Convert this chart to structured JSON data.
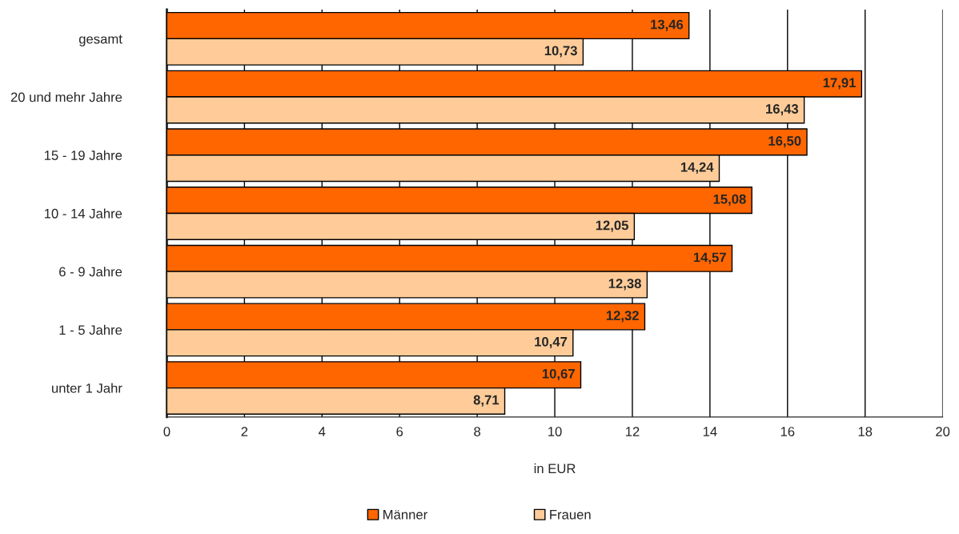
{
  "chart_data": {
    "type": "bar",
    "orientation": "horizontal",
    "xlabel": "in EUR",
    "categories": [
      "gesamt",
      "20 und mehr Jahre",
      "15 - 19 Jahre",
      "10 - 14 Jahre",
      "6 - 9 Jahre",
      "1 - 5 Jahre",
      "unter 1 Jahr"
    ],
    "series": [
      {
        "name": "Männer",
        "color": "#ff6600",
        "values": [
          13.46,
          17.91,
          16.5,
          15.08,
          14.57,
          12.32,
          10.67
        ],
        "value_labels": [
          "13,46",
          "17,91",
          "16,50",
          "15,08",
          "14,57",
          "12,32",
          "10,67"
        ]
      },
      {
        "name": "Frauen",
        "color": "#ffcc99",
        "values": [
          10.73,
          16.43,
          14.24,
          12.05,
          12.38,
          10.47,
          8.71
        ],
        "value_labels": [
          "10,73",
          "16,43",
          "14,24",
          "12,05",
          "12,38",
          "10,47",
          "8,71"
        ]
      }
    ],
    "xlim": [
      0,
      20
    ],
    "xticks": [
      0,
      2,
      4,
      6,
      8,
      10,
      12,
      14,
      16,
      18,
      20
    ],
    "grid": "x",
    "legend": "bottom"
  }
}
